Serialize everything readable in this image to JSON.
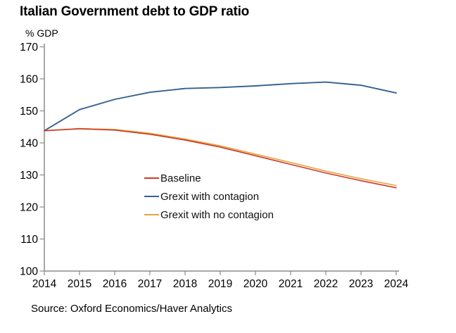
{
  "title": "Italian Government debt to GDP ratio",
  "axis_unit_label": "% GDP",
  "source": "Source: Oxford Economics/Haver Analytics",
  "legend": {
    "items": [
      {
        "label": "Baseline",
        "color": "#CC3A28"
      },
      {
        "label": "Grexit with contagion",
        "color": "#35618F"
      },
      {
        "label": "Grexit with no contagion",
        "color": "#E5A33D"
      }
    ]
  },
  "chart_data": {
    "type": "line",
    "title": "Italian Government debt to GDP ratio",
    "xlabel": "",
    "ylabel": "% GDP",
    "x": [
      2014,
      2015,
      2016,
      2017,
      2018,
      2019,
      2020,
      2021,
      2022,
      2023,
      2024
    ],
    "series": [
      {
        "name": "Baseline",
        "color": "#CC3A28",
        "values": [
          143.8,
          144.4,
          144.0,
          142.7,
          140.9,
          138.7,
          136.0,
          133.3,
          130.6,
          128.2,
          126.0
        ]
      },
      {
        "name": "Grexit with contagion",
        "color": "#35618F",
        "values": [
          143.8,
          150.4,
          153.6,
          155.8,
          157.0,
          157.3,
          157.8,
          158.5,
          159.0,
          158.0,
          155.6
        ]
      },
      {
        "name": "Grexit with no contagion",
        "color": "#E5A33D",
        "values": [
          143.8,
          144.5,
          144.2,
          143.0,
          141.2,
          139.1,
          136.5,
          133.9,
          131.2,
          128.8,
          126.7
        ]
      }
    ],
    "draw_order": [
      1,
      2,
      0
    ],
    "ylim": [
      100,
      170
    ],
    "y_ticks": [
      100,
      110,
      120,
      130,
      140,
      150,
      160,
      170
    ],
    "x_ticks": [
      2014,
      2015,
      2016,
      2017,
      2018,
      2019,
      2020,
      2021,
      2022,
      2023,
      2024
    ],
    "grid": false,
    "legend_position": "inside-left-center",
    "axis_color": "#8C8C8C",
    "tick_label_color": "#000000"
  }
}
